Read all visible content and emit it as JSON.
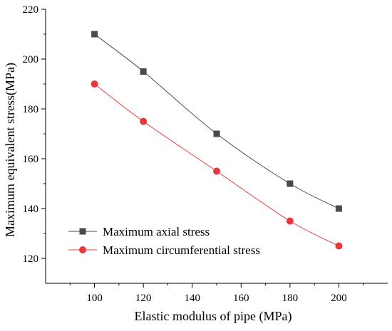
{
  "chart_data": {
    "type": "line",
    "xlabel": "Elastic modulus of pipe (MPa)",
    "ylabel": "Maximum equivalent stress(MPa)",
    "xlim": [
      80,
      220
    ],
    "ylim": [
      110,
      220
    ],
    "xticks": [
      100,
      120,
      140,
      160,
      180,
      200
    ],
    "yticks": [
      120,
      140,
      160,
      180,
      200,
      220
    ],
    "x": [
      100,
      120,
      150,
      180,
      200
    ],
    "series": [
      {
        "name": "Maximum axial stress",
        "values": [
          210,
          195,
          170,
          150,
          140
        ],
        "color": "#4a4a4a",
        "marker": "square"
      },
      {
        "name": "Maximum circumferential stress",
        "values": [
          190,
          175,
          155,
          135,
          125
        ],
        "color": "#e8373c",
        "marker": "circle"
      }
    ],
    "legend_position": "bottom-left",
    "grid": false
  }
}
